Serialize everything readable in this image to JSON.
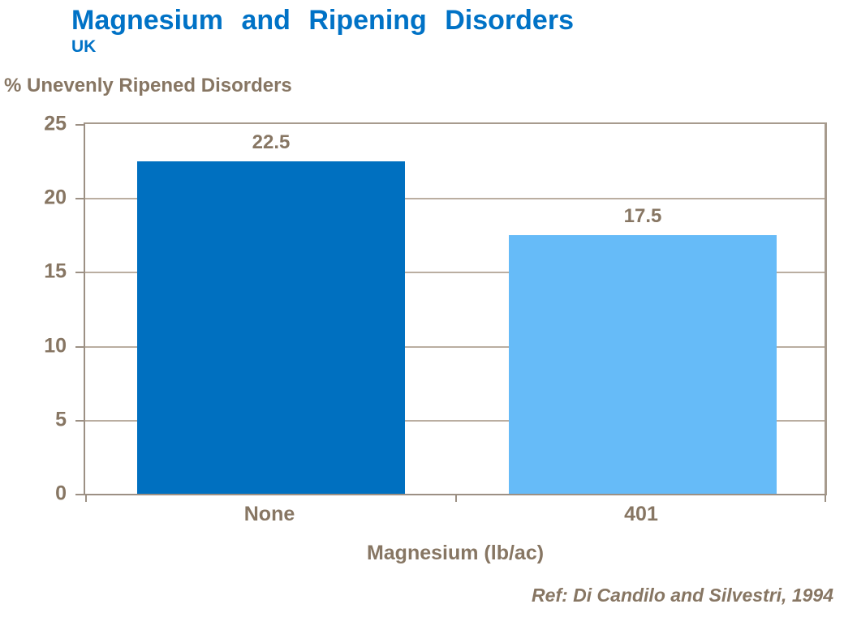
{
  "header": {
    "title": "Magnesium and Ripening Disorders",
    "subtitle": "UK"
  },
  "reference": "Ref: Di Candilo and Silvestri, 1994",
  "chart_data": {
    "type": "bar",
    "title": "Magnesium and Ripening Disorders",
    "subtitle": "UK",
    "categories": [
      "None",
      "401"
    ],
    "values": [
      22.5,
      17.5
    ],
    "value_labels": [
      "22.5",
      "17.5"
    ],
    "bar_colors": [
      "#0070C0",
      "#66BBF8"
    ],
    "xlabel": "Magnesium (lb/ac)",
    "ylabel": "% Unevenly Ripened Disorders",
    "ylim": [
      0,
      25
    ],
    "yticks": [
      0,
      5,
      10,
      15,
      20,
      25
    ],
    "grid": true,
    "legend": "none",
    "annotation": "Ref: Di Candilo and Silvestri, 1994"
  },
  "colors": {
    "accent_blue": "#0072C6",
    "bar_dark": "#0070C0",
    "bar_light": "#66BBF8",
    "text_brown": "#877663",
    "gridline": "#BAAEA1",
    "axis": "#9C9084"
  }
}
